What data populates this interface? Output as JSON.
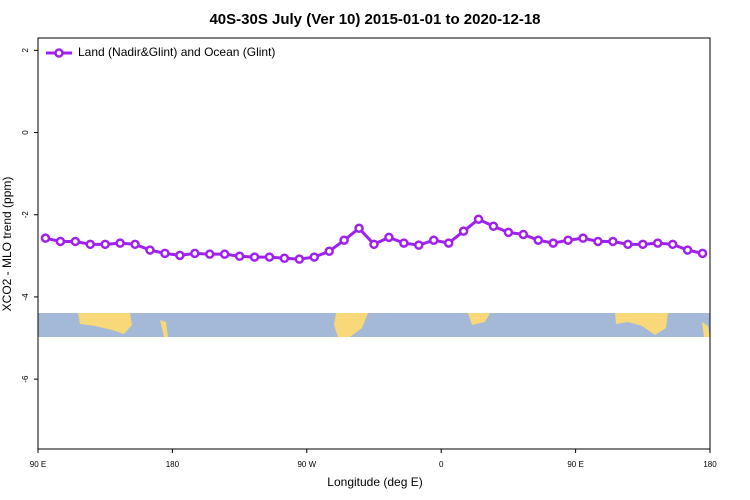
{
  "chart_data": {
    "type": "line",
    "title": "40S-30S July (Ver 10)   2015-01-01 to 2020-12-18",
    "x_label": "Longitude (deg E)",
    "y_label": "XCO2 - MLO trend (ppm)",
    "x": [
      95,
      105,
      115,
      125,
      135,
      145,
      155,
      165,
      175,
      185,
      195,
      205,
      215,
      225,
      235,
      245,
      255,
      265,
      275,
      285,
      295,
      305,
      315,
      325,
      335,
      345,
      355,
      365,
      375,
      385,
      395,
      405,
      415,
      425,
      435,
      445,
      455,
      465,
      475,
      485,
      495,
      505,
      515,
      525,
      535
    ],
    "series": [
      {
        "name": "Land (Nadir&Glint) and Ocean (Glint)",
        "color": "#a020f0",
        "values": [
          -2.57,
          -2.65,
          -2.65,
          -2.72,
          -2.72,
          -2.69,
          -2.72,
          -2.86,
          -2.94,
          -2.99,
          -2.94,
          -2.96,
          -2.96,
          -3.01,
          -3.03,
          -3.03,
          -3.06,
          -3.08,
          -3.03,
          -2.89,
          -2.62,
          -2.33,
          -2.72,
          -2.55,
          -2.69,
          -2.74,
          -2.62,
          -2.69,
          -2.4,
          -2.11,
          -2.28,
          -2.43,
          -2.48,
          -2.62,
          -2.69,
          -2.62,
          -2.57,
          -2.65,
          -2.65,
          -2.72,
          -2.72,
          -2.69,
          -2.72,
          -2.86,
          -2.94
        ]
      }
    ],
    "xlim": [
      90,
      540
    ],
    "xticks": [
      {
        "value": 90,
        "label": "90 E"
      },
      180,
      {
        "value": 270,
        "label": "90 W"
      },
      {
        "value": 360,
        "label": "0"
      },
      {
        "value": 450,
        "label": "90 E"
      },
      {
        "value": 540,
        "label": "180"
      }
    ],
    "ylim": [
      -7.7,
      2.3
    ],
    "yticks": [
      2,
      0,
      -2,
      -4,
      -6
    ],
    "legend": "top-left"
  }
}
